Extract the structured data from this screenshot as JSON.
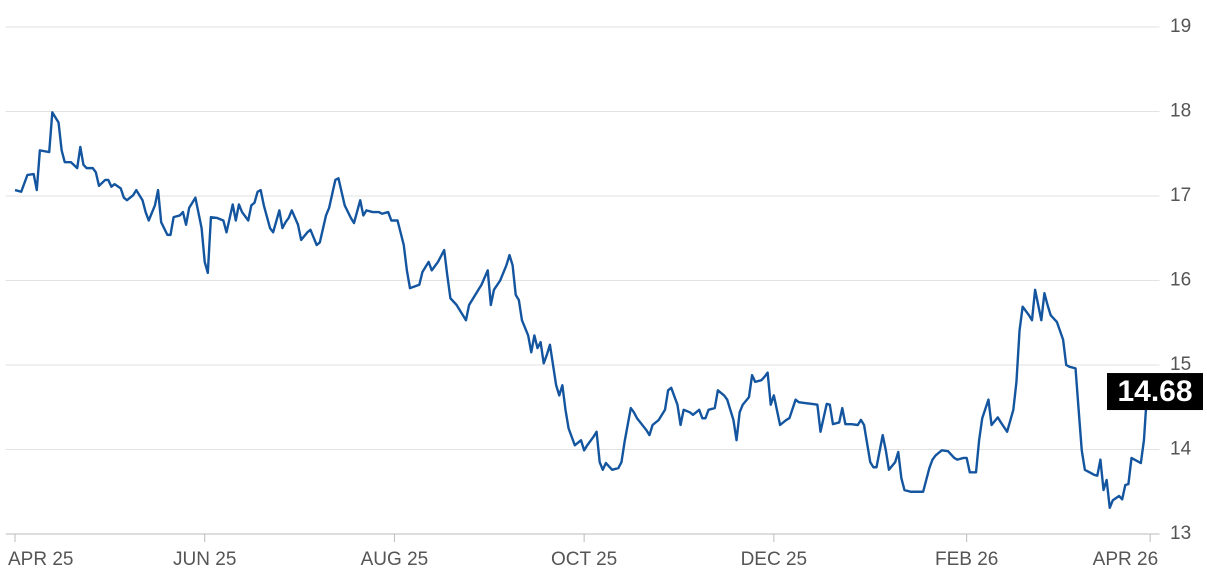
{
  "chart_data": {
    "type": "line",
    "x": [
      0,
      2,
      4,
      6,
      7,
      8,
      11,
      12,
      14,
      15,
      16,
      18,
      20,
      21,
      22,
      23,
      25,
      26,
      27,
      29,
      30,
      31,
      32,
      34,
      35,
      36,
      38,
      39,
      41,
      42,
      43,
      45,
      46,
      47,
      49,
      50,
      51,
      53,
      54,
      55,
      56,
      58,
      60,
      61,
      62,
      63,
      65,
      67,
      68,
      70,
      71,
      72,
      73,
      75,
      76,
      77,
      78,
      79,
      80,
      82,
      83,
      85,
      86,
      87,
      88,
      89,
      91,
      92,
      94,
      95,
      97,
      98,
      100,
      101,
      103,
      104,
      106,
      108,
      109,
      111,
      112,
      113,
      115,
      117,
      118,
      120,
      121,
      123,
      125,
      126,
      127,
      130,
      131,
      133,
      134,
      136,
      138,
      139,
      140,
      142,
      143,
      145,
      146,
      147,
      149,
      150,
      152,
      153,
      154,
      156,
      158,
      159,
      160,
      161,
      162,
      163,
      165,
      166,
      167,
      168,
      169,
      170,
      171,
      172,
      174,
      175,
      176,
      177,
      178,
      180,
      182,
      183,
      184,
      186,
      187,
      188,
      189,
      190,
      192,
      194,
      195,
      196,
      198,
      199,
      200,
      203,
      204,
      205,
      207,
      209,
      210,
      211,
      213,
      214,
      215,
      217,
      218,
      220,
      221,
      222,
      223,
      225,
      226,
      228,
      229,
      231,
      232,
      233,
      234,
      236,
      237,
      238,
      240,
      241,
      242,
      243,
      244,
      246,
      248,
      249,
      251,
      252,
      254,
      256,
      258,
      259,
      261,
      262,
      263,
      265,
      266,
      267,
      269,
      271,
      272,
      273,
      275,
      276,
      277,
      279,
      280,
      281,
      283,
      284,
      285,
      286,
      288,
      290,
      292,
      294,
      295,
      296,
      298,
      300,
      302,
      303,
      305,
      306,
      307,
      309,
      310,
      311,
      313,
      314,
      316,
      317,
      319,
      321,
      322,
      323,
      324,
      326,
      327,
      328,
      330,
      331,
      332,
      333,
      335,
      337,
      338,
      339,
      341,
      342,
      343,
      344,
      347,
      348,
      349,
      350,
      351,
      352,
      353,
      355,
      356,
      357,
      358,
      359,
      360,
      362,
      363,
      364
    ],
    "series": [
      {
        "color": "#14559f",
        "values": [
          17.07,
          17.05,
          17.25,
          17.26,
          17.07,
          17.54,
          17.52,
          17.99,
          17.87,
          17.54,
          17.4,
          17.4,
          17.33,
          17.58,
          17.37,
          17.33,
          17.33,
          17.28,
          17.12,
          17.19,
          17.19,
          17.11,
          17.14,
          17.09,
          16.98,
          16.95,
          17.01,
          17.07,
          16.95,
          16.81,
          16.71,
          16.89,
          17.07,
          16.69,
          16.54,
          16.54,
          16.75,
          16.77,
          16.81,
          16.66,
          16.86,
          16.98,
          16.62,
          16.22,
          16.09,
          16.75,
          16.74,
          16.71,
          16.57,
          16.9,
          16.71,
          16.9,
          16.81,
          16.71,
          16.89,
          16.92,
          17.05,
          17.07,
          16.89,
          16.62,
          16.57,
          16.83,
          16.62,
          16.69,
          16.74,
          16.83,
          16.66,
          16.48,
          16.57,
          16.6,
          16.42,
          16.45,
          16.77,
          16.86,
          17.19,
          17.21,
          16.89,
          16.74,
          16.68,
          16.95,
          16.77,
          16.83,
          16.81,
          16.81,
          16.79,
          16.81,
          16.71,
          16.71,
          16.42,
          16.12,
          15.91,
          15.95,
          16.1,
          16.22,
          16.12,
          16.22,
          16.36,
          16.06,
          15.79,
          15.71,
          15.65,
          15.53,
          15.71,
          15.77,
          15.89,
          15.95,
          16.12,
          15.71,
          15.89,
          16.0,
          16.18,
          16.3,
          16.18,
          15.83,
          15.77,
          15.53,
          15.35,
          15.15,
          15.35,
          15.2,
          15.27,
          15.02,
          15.12,
          15.24,
          14.76,
          14.64,
          14.76,
          14.47,
          14.25,
          14.05,
          14.11,
          13.99,
          14.05,
          14.15,
          14.21,
          13.85,
          13.76,
          13.84,
          13.76,
          13.78,
          13.85,
          14.09,
          14.49,
          14.44,
          14.37,
          14.23,
          14.17,
          14.29,
          14.35,
          14.47,
          14.7,
          14.73,
          14.53,
          14.29,
          14.47,
          14.44,
          14.41,
          14.47,
          14.37,
          14.37,
          14.47,
          14.49,
          14.7,
          14.64,
          14.59,
          14.35,
          14.11,
          14.44,
          14.53,
          14.62,
          14.88,
          14.8,
          14.82,
          14.86,
          14.91,
          14.53,
          14.64,
          14.29,
          14.35,
          14.37,
          14.59,
          14.56,
          14.55,
          14.54,
          14.53,
          14.21,
          14.54,
          14.53,
          14.3,
          14.32,
          14.49,
          14.3,
          14.3,
          14.29,
          14.35,
          14.29,
          13.85,
          13.79,
          13.79,
          14.17,
          13.99,
          13.76,
          13.85,
          13.97,
          13.66,
          13.52,
          13.5,
          13.5,
          13.5,
          13.78,
          13.88,
          13.93,
          13.99,
          13.98,
          13.9,
          13.88,
          13.9,
          13.9,
          13.73,
          13.73,
          14.11,
          14.37,
          14.59,
          14.29,
          14.38,
          14.32,
          14.21,
          14.47,
          14.8,
          15.41,
          15.69,
          15.59,
          15.53,
          15.89,
          15.53,
          15.85,
          15.71,
          15.59,
          15.51,
          15.3,
          15.0,
          14.98,
          14.96,
          14.47,
          13.99,
          13.76,
          13.7,
          13.69,
          13.88,
          13.52,
          13.64,
          13.31,
          13.4,
          13.45,
          13.41,
          13.58,
          13.59,
          13.9,
          13.88,
          13.84,
          14.11,
          14.68
        ]
      }
    ],
    "xlim": [
      -3,
      368
    ],
    "xticks": [
      {
        "value": 0,
        "label": "APR 25"
      },
      {
        "value": 61,
        "label": "JUN 25"
      },
      {
        "value": 122,
        "label": "AUG 25"
      },
      {
        "value": 183,
        "label": "OCT 25"
      },
      {
        "value": 244,
        "label": "DEC 25"
      },
      {
        "value": 306,
        "label": "FEB 26"
      },
      {
        "value": 365,
        "label": "APR 26"
      }
    ],
    "ylim": [
      13,
      19
    ],
    "yticks": [
      13,
      14,
      15,
      16,
      17,
      18,
      19
    ],
    "grid": true
  }
}
